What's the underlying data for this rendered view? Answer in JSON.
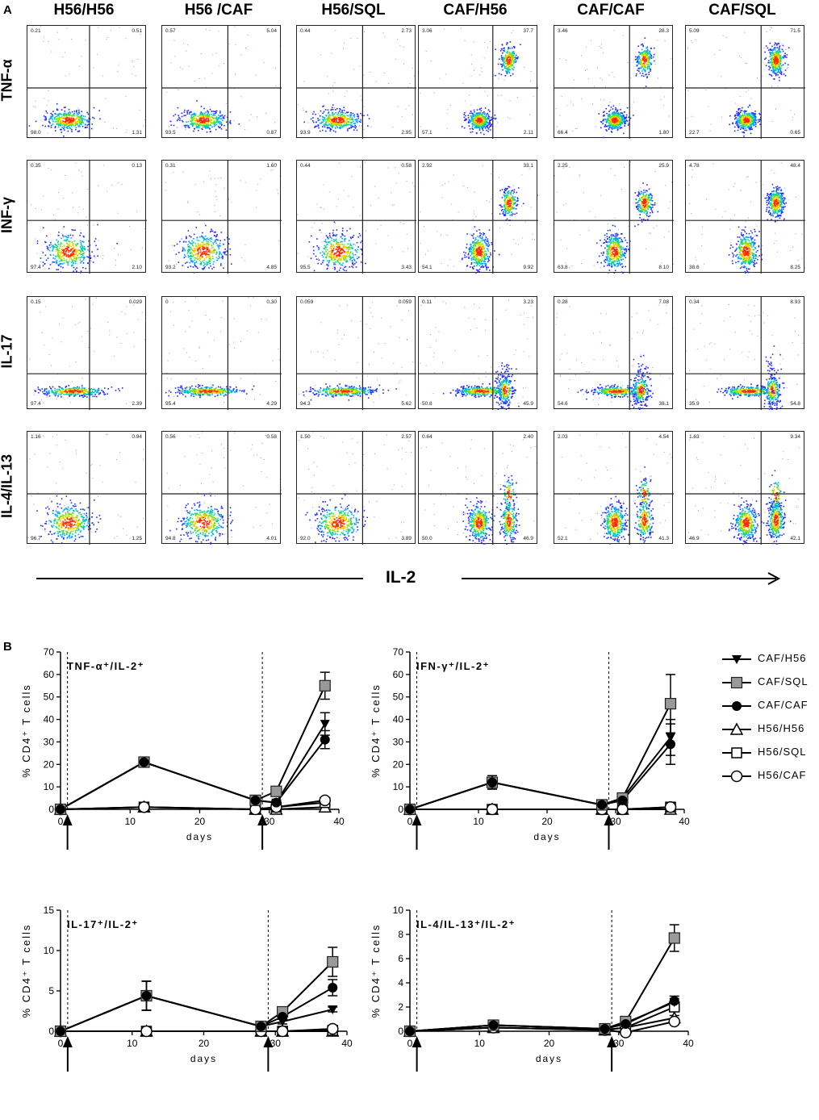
{
  "panel_a": {
    "label": "A",
    "columns": [
      "H56/H56",
      "H56 /CAF",
      "H56/SQL",
      "CAF/H56",
      "CAF/CAF",
      "CAF/SQL"
    ],
    "rows": [
      "TNF-α",
      "INF-γ",
      "IL-17",
      "IL-4/IL-13"
    ],
    "x_axis_label": "IL-2",
    "quadrants": [
      [
        [
          "0.21",
          "0.51",
          "98.0",
          "1.31"
        ],
        [
          "0.57",
          "5.04",
          "93.5",
          "0.87"
        ],
        [
          "0.44",
          "2.73",
          "93.9",
          "2.95"
        ],
        [
          "3.06",
          "37.7",
          "57.1",
          "2.11"
        ],
        [
          "3.46",
          "28.3",
          "66.4",
          "1.80"
        ],
        [
          "5.09",
          "71.5",
          "22.7",
          "0.65"
        ]
      ],
      [
        [
          "0.35",
          "0.13",
          "97.4",
          "2.10"
        ],
        [
          "0.31",
          "1.60",
          "93.2",
          "4.85"
        ],
        [
          "0.44",
          "0.58",
          "95.5",
          "3.43"
        ],
        [
          "2.92",
          "33.1",
          "54.1",
          "9.92"
        ],
        [
          "2.25",
          "25.9",
          "63.8",
          "8.10"
        ],
        [
          "4.78",
          "48.4",
          "38.6",
          "8.25"
        ]
      ],
      [
        [
          "0.15",
          "0.029",
          "97.4",
          "2.39"
        ],
        [
          "0",
          "0.30",
          "95.4",
          "4.29"
        ],
        [
          "0.059",
          "0.059",
          "94.3",
          "5.62"
        ],
        [
          "0.11",
          "3.23",
          "50.8",
          "45.9"
        ],
        [
          "0.28",
          "7.08",
          "54.6",
          "38.1"
        ],
        [
          "0.34",
          "8.93",
          "35.9",
          "54.8"
        ]
      ],
      [
        [
          "1.16",
          "0.94",
          "96.7",
          "1.25"
        ],
        [
          "0.56",
          "0.58",
          "94.8",
          "4.01"
        ],
        [
          "1.50",
          "2.57",
          "92.0",
          "3.89"
        ],
        [
          "0.64",
          "2.40",
          "50.0",
          "46.9"
        ],
        [
          "2.03",
          "4.54",
          "52.1",
          "41.3"
        ],
        [
          "1.63",
          "9.34",
          "46.9",
          "42.1"
        ]
      ]
    ]
  },
  "panel_b": {
    "label": "B",
    "legend": [
      "CAF/H56",
      "CAF/SQL",
      "CAF/CAF",
      "H56/H56",
      "H56/SQL",
      "H56/CAF"
    ],
    "xlabel": "days",
    "ylabel_prefix": "% CD4",
    "ylabel_suffix": " T cells"
  },
  "chart_data": [
    {
      "type": "line",
      "title": "TNF-α⁺/IL-2⁺",
      "xlabel": "days",
      "ylabel": "% CD4⁺ T cells",
      "xlim": [
        0,
        40
      ],
      "ylim": [
        0,
        70
      ],
      "xticks": [
        0,
        10,
        20,
        30,
        40
      ],
      "yticks": [
        0,
        10,
        20,
        30,
        40,
        50,
        60,
        70
      ],
      "dashed_x": [
        1,
        29
      ],
      "x": [
        0,
        12,
        28,
        31,
        38
      ],
      "series": [
        {
          "name": "CAF/H56",
          "values": [
            0,
            21,
            4,
            3,
            38
          ],
          "err": [
            0,
            1,
            1,
            1,
            5
          ]
        },
        {
          "name": "CAF/SQL",
          "values": [
            0,
            21,
            4,
            8,
            55
          ],
          "err": [
            0,
            1,
            1,
            1,
            6
          ]
        },
        {
          "name": "CAF/CAF",
          "values": [
            0,
            21,
            4,
            3,
            31
          ],
          "err": [
            0,
            1,
            1,
            1,
            4
          ]
        },
        {
          "name": "H56/H56",
          "values": [
            0,
            1,
            0,
            0,
            1
          ],
          "err": [
            0,
            0,
            0,
            0,
            0
          ]
        },
        {
          "name": "H56/SQL",
          "values": [
            0,
            1,
            0,
            1,
            3
          ],
          "err": [
            0,
            0,
            0,
            0,
            0
          ]
        },
        {
          "name": "H56/CAF",
          "values": [
            0,
            1,
            0,
            1,
            4
          ],
          "err": [
            0,
            0,
            0,
            0,
            0
          ]
        }
      ]
    },
    {
      "type": "line",
      "title": "IFN-γ⁺/IL-2⁺",
      "xlabel": "days",
      "ylabel": "% CD4⁺ T cells",
      "xlim": [
        0,
        40
      ],
      "ylim": [
        0,
        70
      ],
      "xticks": [
        0,
        10,
        20,
        30,
        40
      ],
      "yticks": [
        0,
        10,
        20,
        30,
        40,
        50,
        60,
        70
      ],
      "dashed_x": [
        1,
        29
      ],
      "x": [
        0,
        12,
        28,
        31,
        38
      ],
      "series": [
        {
          "name": "CAF/H56",
          "values": [
            0,
            12,
            2,
            5,
            32
          ],
          "err": [
            0,
            3,
            1,
            1,
            8
          ]
        },
        {
          "name": "CAF/SQL",
          "values": [
            0,
            12,
            2,
            5,
            47
          ],
          "err": [
            0,
            3,
            1,
            1,
            13
          ]
        },
        {
          "name": "CAF/CAF",
          "values": [
            0,
            12,
            2,
            4,
            29
          ],
          "err": [
            0,
            3,
            1,
            1,
            9
          ]
        },
        {
          "name": "H56/H56",
          "values": [
            0,
            0,
            0,
            0,
            0
          ],
          "err": [
            0,
            0,
            0,
            0,
            0
          ]
        },
        {
          "name": "H56/SQL",
          "values": [
            0,
            0,
            0,
            0,
            1
          ],
          "err": [
            0,
            0,
            0,
            0,
            0
          ]
        },
        {
          "name": "H56/CAF",
          "values": [
            0,
            0,
            0,
            0,
            1
          ],
          "err": [
            0,
            0,
            0,
            0,
            0
          ]
        }
      ]
    },
    {
      "type": "line",
      "title": "IL-17⁺/IL-2⁺",
      "xlabel": "days",
      "ylabel": "% CD4⁺ T cells",
      "xlim": [
        0,
        40
      ],
      "ylim": [
        0,
        15
      ],
      "xticks": [
        0,
        10,
        20,
        30,
        40
      ],
      "yticks": [
        0,
        5,
        10,
        15
      ],
      "dashed_x": [
        1,
        29
      ],
      "x": [
        0,
        12,
        28,
        31,
        38
      ],
      "series": [
        {
          "name": "CAF/H56",
          "values": [
            0,
            4.4,
            0.6,
            1.2,
            2.7
          ],
          "err": [
            0,
            1.8,
            0.2,
            0.3,
            0.3
          ]
        },
        {
          "name": "CAF/SQL",
          "values": [
            0,
            4.4,
            0.6,
            2.4,
            8.6
          ],
          "err": [
            0,
            1.8,
            0.2,
            0.4,
            1.8
          ]
        },
        {
          "name": "CAF/CAF",
          "values": [
            0,
            4.4,
            0.6,
            1.8,
            5.4
          ],
          "err": [
            0,
            1.8,
            0.2,
            0.3,
            1.0
          ]
        },
        {
          "name": "H56/H56",
          "values": [
            0,
            0,
            0,
            0,
            0
          ],
          "err": [
            0,
            0,
            0,
            0,
            0
          ]
        },
        {
          "name": "H56/SQL",
          "values": [
            0,
            0,
            0,
            0,
            0.1
          ],
          "err": [
            0,
            0,
            0,
            0,
            0
          ]
        },
        {
          "name": "H56/CAF",
          "values": [
            0,
            0,
            0,
            0,
            0.3
          ],
          "err": [
            0,
            0,
            0,
            0,
            0
          ]
        }
      ]
    },
    {
      "type": "line",
      "title": "IL-4/IL-13⁺/IL-2⁺",
      "xlabel": "days",
      "ylabel": "% CD4⁺ T cells",
      "xlim": [
        0,
        40
      ],
      "ylim": [
        0,
        10
      ],
      "xticks": [
        0,
        10,
        20,
        30,
        40
      ],
      "yticks": [
        0,
        2,
        4,
        6,
        8,
        10
      ],
      "dashed_x": [
        1,
        29
      ],
      "x": [
        0,
        12,
        28,
        31,
        38
      ],
      "series": [
        {
          "name": "CAF/H56",
          "values": [
            0,
            0.5,
            0.2,
            0.7,
            2.4
          ],
          "err": [
            0,
            0.2,
            0.1,
            0.2,
            0.3
          ]
        },
        {
          "name": "CAF/SQL",
          "values": [
            0,
            0.5,
            0.2,
            0.8,
            7.7
          ],
          "err": [
            0,
            0.2,
            0.1,
            0.2,
            1.1
          ]
        },
        {
          "name": "CAF/CAF",
          "values": [
            0,
            0.5,
            0.2,
            0.6,
            2.5
          ],
          "err": [
            0,
            0.2,
            0.1,
            0.2,
            0.4
          ]
        },
        {
          "name": "H56/H56",
          "values": [
            0,
            0.3,
            0.1,
            0.3,
            1.1
          ],
          "err": [
            0,
            0.1,
            0.1,
            0.1,
            0.2
          ]
        },
        {
          "name": "H56/SQL",
          "values": [
            0,
            0.3,
            0.1,
            0.3,
            2.0
          ],
          "err": [
            0,
            0.1,
            0.1,
            0.1,
            0.3
          ]
        },
        {
          "name": "H56/CAF",
          "values": [
            0,
            0.3,
            0.1,
            -0.1,
            0.8
          ],
          "err": [
            0,
            0.1,
            0.1,
            0.1,
            0.2
          ]
        }
      ]
    }
  ]
}
